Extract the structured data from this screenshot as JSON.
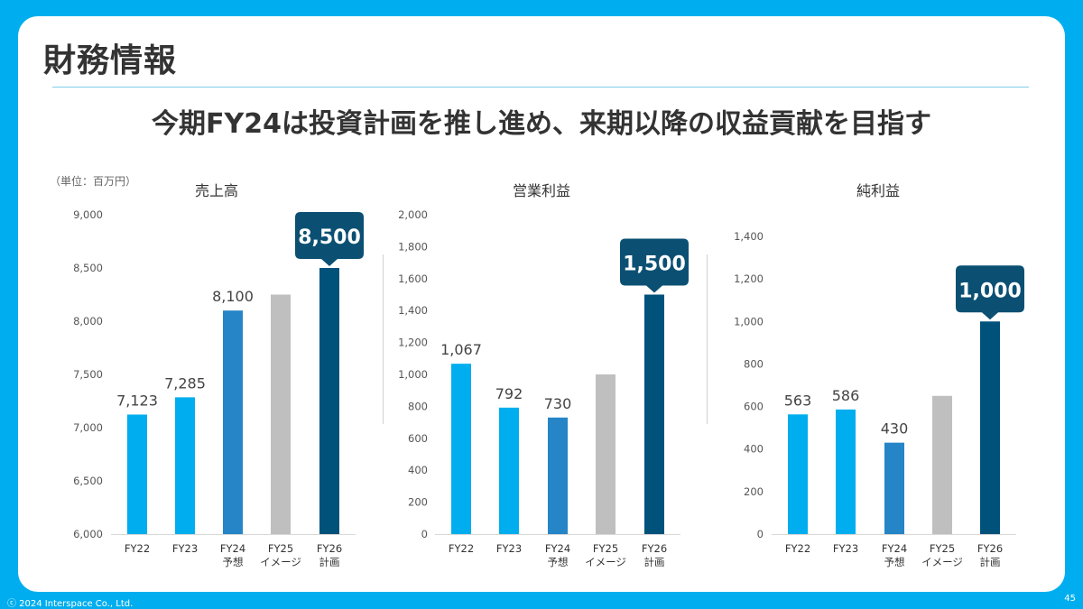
{
  "page": {
    "title": "財務情報",
    "headline": "今期FY24は投資計画を推し進め、来期以降の収益貢献を目指す",
    "unit_note": "（単位：百万円）",
    "footer": "ⓒ 2024 Interspace Co., Ltd.",
    "page_number": "45"
  },
  "colors": {
    "background": "#00AEEF",
    "bar_actual": "#00AEEF",
    "bar_forecast": "#2585C7",
    "bar_image": "#BFBFBF",
    "bar_plan": "#00527A",
    "callout": "#0B5073"
  },
  "chart_data": [
    {
      "type": "bar",
      "title": "売上高",
      "categories": [
        [
          "FY22"
        ],
        [
          "FY23"
        ],
        [
          "FY24",
          "予想"
        ],
        [
          "FY25",
          "イメージ"
        ],
        [
          "FY26",
          "計画"
        ]
      ],
      "values": [
        7123,
        7285,
        8100,
        8250,
        8500
      ],
      "value_labels": [
        "7,123",
        "7,285",
        "8,100",
        "",
        ""
      ],
      "callout": {
        "index": 4,
        "label": "8,500"
      },
      "ylim": [
        6000,
        9000
      ],
      "yticks": [
        6000,
        6500,
        7000,
        7500,
        8000,
        8500,
        9000
      ],
      "ytick_labels": [
        "6,000",
        "6,500",
        "7,000",
        "7,500",
        "8,000",
        "8,500",
        "9,000"
      ]
    },
    {
      "type": "bar",
      "title": "営業利益",
      "categories": [
        [
          "FY22"
        ],
        [
          "FY23"
        ],
        [
          "FY24",
          "予想"
        ],
        [
          "FY25",
          "イメージ"
        ],
        [
          "FY26",
          "計画"
        ]
      ],
      "values": [
        1067,
        792,
        730,
        1000,
        1500
      ],
      "value_labels": [
        "1,067",
        "792",
        "730",
        "",
        ""
      ],
      "callout": {
        "index": 4,
        "label": "1,500"
      },
      "ylim": [
        0,
        2000
      ],
      "yticks": [
        0,
        200,
        400,
        600,
        800,
        1000,
        1200,
        1400,
        1600,
        1800,
        2000
      ],
      "ytick_labels": [
        "0",
        "200",
        "400",
        "600",
        "800",
        "1,000",
        "1,200",
        "1,400",
        "1,600",
        "1,800",
        "2,000"
      ]
    },
    {
      "type": "bar",
      "title": "純利益",
      "categories": [
        [
          "FY22"
        ],
        [
          "FY23"
        ],
        [
          "FY24",
          "予想"
        ],
        [
          "FY25",
          "イメージ"
        ],
        [
          "FY26",
          "計画"
        ]
      ],
      "values": [
        563,
        586,
        430,
        650,
        1000
      ],
      "value_labels": [
        "563",
        "586",
        "430",
        "",
        ""
      ],
      "callout": {
        "index": 4,
        "label": "1,000"
      },
      "ylim": [
        0,
        1500
      ],
      "yticks": [
        0,
        200,
        400,
        600,
        800,
        1000,
        1200,
        1400
      ],
      "ytick_labels": [
        "0",
        "200",
        "400",
        "600",
        "800",
        "1,000",
        "1,200",
        "1,400"
      ]
    }
  ]
}
